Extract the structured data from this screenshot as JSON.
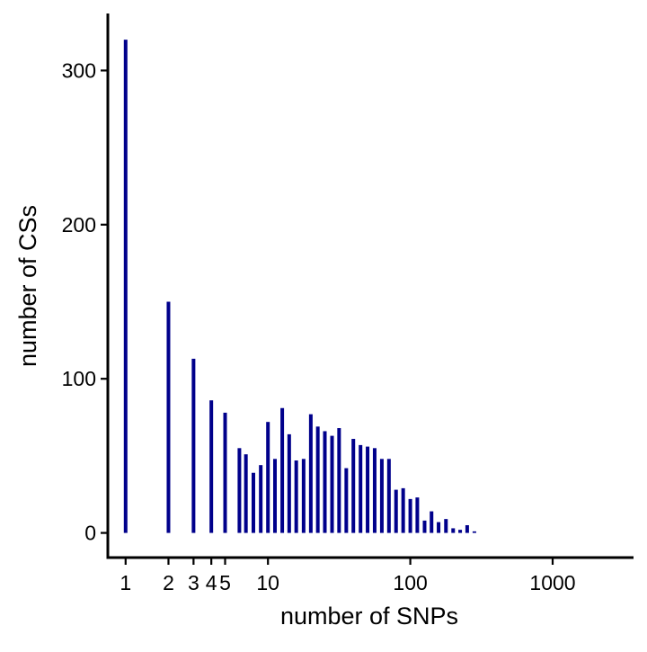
{
  "chart_data": {
    "type": "bar",
    "title": "",
    "xlabel": "number of SNPs",
    "ylabel": "number of CSs",
    "x_scale": "log10",
    "xlim": [
      0.75,
      3700
    ],
    "ylim": [
      -16,
      337
    ],
    "y_ticks": [
      {
        "value": 0,
        "label": "0"
      },
      {
        "value": 100,
        "label": "100"
      },
      {
        "value": 200,
        "label": "200"
      },
      {
        "value": 300,
        "label": "300"
      }
    ],
    "x_ticks": [
      {
        "value": 1,
        "label": "1"
      },
      {
        "value": 2,
        "label": "2"
      },
      {
        "value": 3,
        "label": "3"
      },
      {
        "value": 4,
        "label": "4"
      },
      {
        "value": 5,
        "label": "5"
      },
      {
        "value": 10,
        "label": "10"
      },
      {
        "value": 100,
        "label": "100"
      },
      {
        "value": 1000,
        "label": "1000"
      }
    ],
    "grid": false,
    "bar_color": "#00008B",
    "bars": [
      {
        "x": 1,
        "y": 320
      },
      {
        "x": 2,
        "y": 150
      },
      {
        "x": 3,
        "y": 113
      },
      {
        "x": 4,
        "y": 86
      },
      {
        "x": 5,
        "y": 78
      },
      {
        "x": 6.3,
        "y": 55
      },
      {
        "x": 7,
        "y": 51
      },
      {
        "x": 7.9,
        "y": 39
      },
      {
        "x": 8.9,
        "y": 44
      },
      {
        "x": 10,
        "y": 72
      },
      {
        "x": 11.2,
        "y": 48
      },
      {
        "x": 12.6,
        "y": 81
      },
      {
        "x": 14.1,
        "y": 64
      },
      {
        "x": 15.8,
        "y": 47
      },
      {
        "x": 17.8,
        "y": 48
      },
      {
        "x": 20,
        "y": 77
      },
      {
        "x": 22.4,
        "y": 69
      },
      {
        "x": 25.1,
        "y": 66
      },
      {
        "x": 28.2,
        "y": 63
      },
      {
        "x": 31.6,
        "y": 68
      },
      {
        "x": 35.5,
        "y": 42
      },
      {
        "x": 39.8,
        "y": 61
      },
      {
        "x": 44.7,
        "y": 57
      },
      {
        "x": 50.1,
        "y": 56
      },
      {
        "x": 56.2,
        "y": 55
      },
      {
        "x": 63.1,
        "y": 48
      },
      {
        "x": 70.8,
        "y": 48
      },
      {
        "x": 79.4,
        "y": 28
      },
      {
        "x": 89.1,
        "y": 29
      },
      {
        "x": 100,
        "y": 22
      },
      {
        "x": 112,
        "y": 23
      },
      {
        "x": 126,
        "y": 8
      },
      {
        "x": 141,
        "y": 14
      },
      {
        "x": 158,
        "y": 7
      },
      {
        "x": 178,
        "y": 9
      },
      {
        "x": 200,
        "y": 3
      },
      {
        "x": 224,
        "y": 2
      },
      {
        "x": 251,
        "y": 5
      },
      {
        "x": 282,
        "y": 1
      }
    ]
  }
}
